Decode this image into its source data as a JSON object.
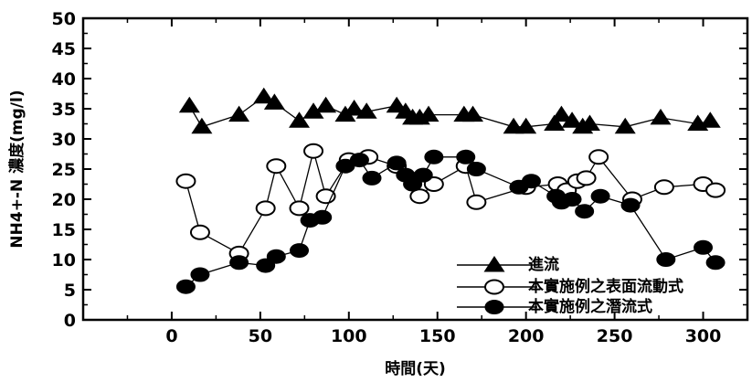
{
  "chart_data": {
    "type": "line",
    "title": "",
    "xlabel": "時間(天)",
    "ylabel": "NH4+-N 濃度(mg/l)",
    "xlim": [
      -50,
      325
    ],
    "ylim": [
      0,
      50
    ],
    "xticks": [
      0,
      50,
      100,
      150,
      200,
      250,
      300
    ],
    "yticks": [
      0,
      5,
      10,
      15,
      20,
      25,
      30,
      35,
      40,
      45,
      50
    ],
    "grid": false,
    "legend_position": "bottom-right",
    "series": [
      {
        "name": "進流",
        "marker": "filled-triangle",
        "color": "#000000",
        "x": [
          10,
          17,
          38,
          52,
          58,
          72,
          80,
          87,
          98,
          103,
          110,
          127,
          132,
          136,
          140,
          145,
          165,
          170,
          193,
          200,
          216,
          220,
          226,
          232,
          236,
          256,
          276,
          297,
          304
        ],
        "y": [
          35.5,
          32,
          34,
          37,
          36,
          33,
          34.5,
          35.5,
          34,
          35,
          34.5,
          35.5,
          34.5,
          33.5,
          33.5,
          34,
          34,
          34,
          32,
          32,
          32.5,
          34,
          33,
          32,
          32.5,
          32,
          33.5,
          32.5,
          33
        ]
      },
      {
        "name": "本實施例之表面流動式",
        "marker": "open-circle",
        "color": "#000000",
        "x": [
          8,
          16,
          38,
          53,
          59,
          72,
          80,
          87,
          100,
          111,
          127,
          140,
          148,
          166,
          172,
          200,
          218,
          223,
          229,
          234,
          241,
          260,
          278,
          300,
          307
        ],
        "y": [
          23,
          14.5,
          11,
          18.5,
          25.5,
          18.5,
          28,
          20.5,
          26.5,
          27,
          25.5,
          20.5,
          22.5,
          25.5,
          19.5,
          22,
          22.5,
          21.5,
          23,
          23.5,
          27,
          20,
          22,
          22.5,
          21.5
        ]
      },
      {
        "name": "本實施例之潛流式",
        "marker": "filled-circle",
        "color": "#000000",
        "x": [
          8,
          16,
          38,
          53,
          59,
          72,
          78,
          85,
          98,
          106,
          113,
          127,
          132,
          136,
          142,
          148,
          166,
          172,
          196,
          203,
          217,
          220,
          226,
          233,
          242,
          259,
          279,
          300,
          307
        ],
        "y": [
          5.5,
          7.5,
          9.5,
          9,
          10.5,
          11.5,
          16.5,
          17,
          25.5,
          26.5,
          23.5,
          26,
          24,
          22.5,
          24,
          27,
          27,
          25,
          22,
          23,
          20.5,
          19.5,
          20,
          18,
          20.5,
          19,
          10,
          12,
          9.5
        ]
      }
    ]
  }
}
